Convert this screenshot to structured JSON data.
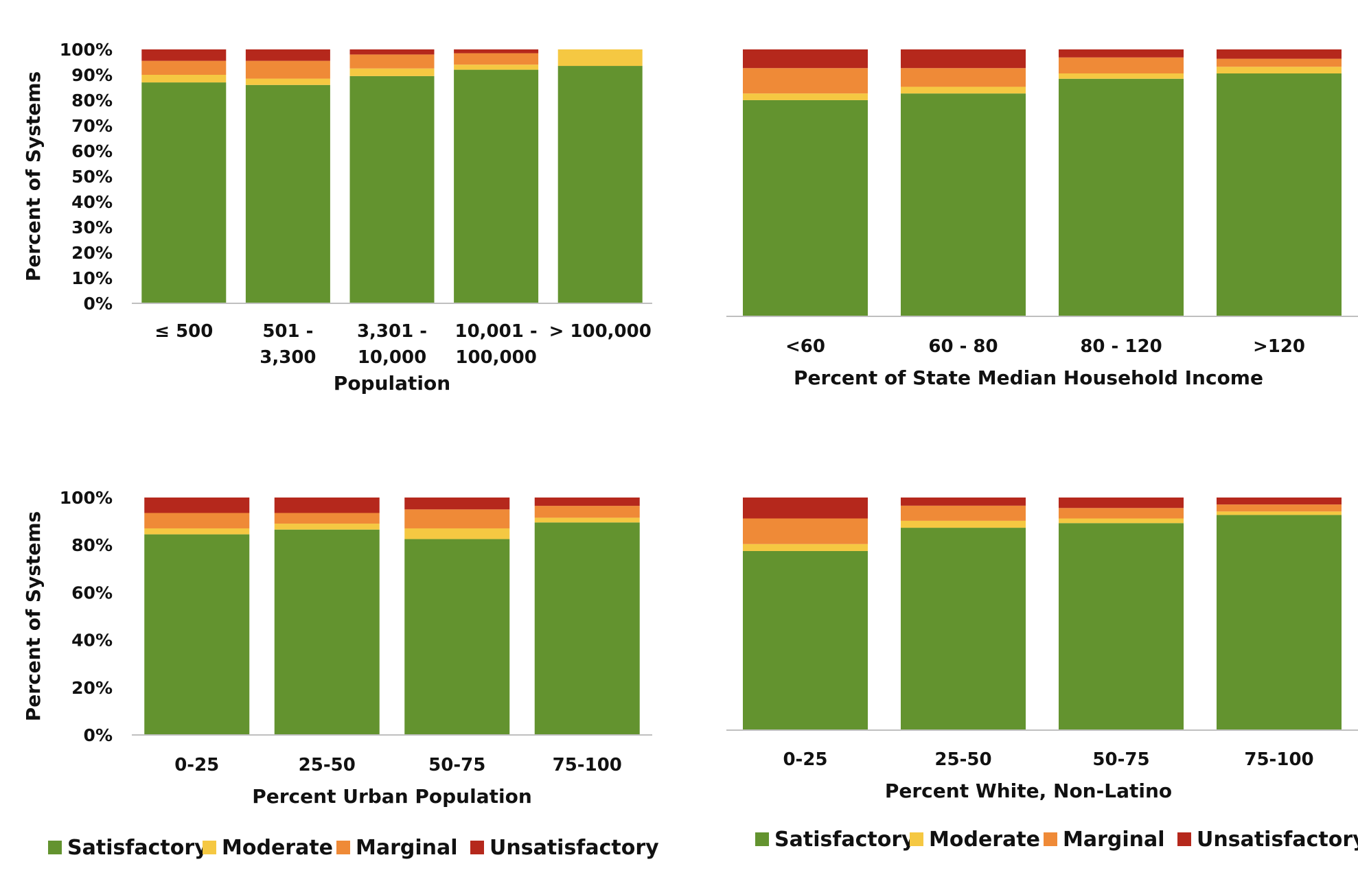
{
  "colors": {
    "Satisfactory": "#63932f",
    "Moderate": "#f5c842",
    "Marginal": "#ef8a37",
    "Unsatisfactory": "#b5281c",
    "axis": "#bfbfbf"
  },
  "legends": {
    "left": [
      "Satisfactory",
      "Moderate",
      "Marginal",
      "Unsatisfactory"
    ],
    "right": [
      "Satisfactory",
      "Moderate",
      "Marginal",
      "Unsatisfactory"
    ]
  },
  "chart_data": [
    {
      "id": "population",
      "type": "bar",
      "stacked": true,
      "title": "",
      "xlabel": "Population",
      "ylabel": "Percent of Systems",
      "ylim": [
        0,
        100
      ],
      "yticks": [
        "0%",
        "10%",
        "20%",
        "30%",
        "40%",
        "50%",
        "60%",
        "70%",
        "80%",
        "90%",
        "100%"
      ],
      "categories": [
        [
          "≤ 500"
        ],
        [
          "501 -",
          "3,300"
        ],
        [
          "3,301 -",
          "10,000"
        ],
        [
          "10,001 -",
          "100,000"
        ],
        [
          "> 100,000"
        ]
      ],
      "series": [
        {
          "name": "Satisfactory",
          "values": [
            87,
            86,
            89.5,
            92,
            93.5
          ]
        },
        {
          "name": "Moderate",
          "values": [
            3,
            2.5,
            3,
            2,
            6.5
          ]
        },
        {
          "name": "Marginal",
          "values": [
            5.5,
            7,
            5.5,
            4.5,
            0
          ]
        },
        {
          "name": "Unsatisfactory",
          "values": [
            4.5,
            4.5,
            2,
            1.5,
            0
          ]
        }
      ]
    },
    {
      "id": "income",
      "type": "bar",
      "stacked": true,
      "title": "",
      "xlabel": "Percent of State Median Household Income",
      "ylabel": "",
      "ylim": [
        0,
        100
      ],
      "yticks": [],
      "categories": [
        [
          "<60"
        ],
        [
          "60 - 80"
        ],
        [
          "80 - 120"
        ],
        [
          ">120"
        ]
      ],
      "series": [
        {
          "name": "Satisfactory",
          "values": [
            81,
            83.5,
            89,
            91
          ]
        },
        {
          "name": "Moderate",
          "values": [
            2.5,
            2.5,
            2,
            2.5
          ]
        },
        {
          "name": "Marginal",
          "values": [
            9.5,
            7,
            6,
            3
          ]
        },
        {
          "name": "Unsatisfactory",
          "values": [
            7,
            7,
            3,
            3.5
          ]
        }
      ]
    },
    {
      "id": "urban",
      "type": "bar",
      "stacked": true,
      "title": "",
      "xlabel": "Percent Urban Population",
      "ylabel": "Percent of Systems",
      "ylim": [
        0,
        100
      ],
      "yticks": [
        "0%",
        "20%",
        "40%",
        "60%",
        "80%",
        "100%"
      ],
      "categories": [
        [
          "0-25"
        ],
        [
          "25-50"
        ],
        [
          "50-75"
        ],
        [
          "75-100"
        ]
      ],
      "series": [
        {
          "name": "Satisfactory",
          "values": [
            84.5,
            86.5,
            82.5,
            89.5
          ]
        },
        {
          "name": "Moderate",
          "values": [
            2.5,
            2.5,
            4.5,
            2
          ]
        },
        {
          "name": "Marginal",
          "values": [
            6.5,
            4.5,
            8,
            5
          ]
        },
        {
          "name": "Unsatisfactory",
          "values": [
            6.5,
            6.5,
            5,
            3.5
          ]
        }
      ]
    },
    {
      "id": "white",
      "type": "bar",
      "stacked": true,
      "title": "",
      "xlabel": "Percent White, Non-Latino",
      "ylabel": "",
      "ylim": [
        0,
        100
      ],
      "yticks": [],
      "categories": [
        [
          "0-25"
        ],
        [
          "25-50"
        ],
        [
          "50-75"
        ],
        [
          "75-100"
        ]
      ],
      "series": [
        {
          "name": "Satisfactory",
          "values": [
            77,
            87,
            89,
            92.5
          ]
        },
        {
          "name": "Moderate",
          "values": [
            3,
            3,
            2,
            1.5
          ]
        },
        {
          "name": "Marginal",
          "values": [
            11,
            6.5,
            4.5,
            3
          ]
        },
        {
          "name": "Unsatisfactory",
          "values": [
            9,
            3.5,
            4.5,
            3
          ]
        }
      ]
    }
  ]
}
